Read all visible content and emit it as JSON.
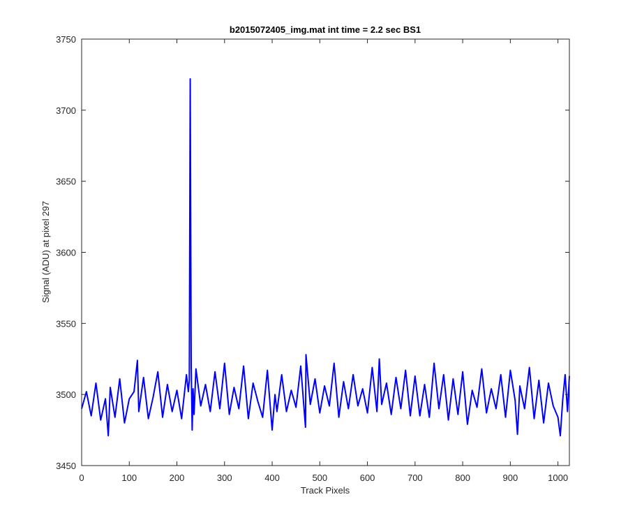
{
  "figure": {
    "background": "#ffffff"
  },
  "chart_data": {
    "type": "line",
    "title": "b2015072405_img.mat int time = 2.2 sec   BS1",
    "xlabel": "Track Pixels",
    "ylabel": "Signal (ADU) at pixel 297",
    "xlim": [
      0,
      1024
    ],
    "ylim": [
      3450,
      3750
    ],
    "xticks": [
      0,
      100,
      200,
      300,
      400,
      500,
      600,
      700,
      800,
      900,
      1000
    ],
    "yticks": [
      3450,
      3500,
      3550,
      3600,
      3650,
      3700,
      3750
    ],
    "grid": false,
    "legend": false,
    "series_color": "#0000ff",
    "series": [
      {
        "points_x": [
          0,
          10,
          20,
          30,
          40,
          50,
          56,
          60,
          70,
          80,
          90,
          100,
          110,
          117,
          120,
          130,
          140,
          150,
          160,
          170,
          180,
          190,
          200,
          210,
          220,
          224,
          226,
          228,
          230,
          232,
          234,
          236,
          240,
          250,
          260,
          270,
          280,
          290,
          300,
          310,
          320,
          330,
          340,
          350,
          360,
          370,
          380,
          390,
          400,
          406,
          410,
          420,
          430,
          440,
          450,
          460,
          470,
          471,
          480,
          490,
          500,
          510,
          520,
          530,
          540,
          550,
          560,
          570,
          580,
          590,
          600,
          610,
          620,
          625,
          630,
          640,
          650,
          660,
          670,
          680,
          690,
          700,
          710,
          720,
          730,
          740,
          750,
          760,
          770,
          780,
          790,
          800,
          810,
          820,
          830,
          840,
          850,
          860,
          870,
          880,
          890,
          900,
          910,
          915,
          920,
          930,
          940,
          950,
          960,
          970,
          980,
          990,
          1000,
          1005,
          1010,
          1015,
          1020,
          1024
        ],
        "values": [
          3490,
          3502,
          3485,
          3508,
          3482,
          3497,
          3471,
          3505,
          3484,
          3511,
          3480,
          3497,
          3502,
          3524,
          3488,
          3512,
          3483,
          3498,
          3516,
          3484,
          3507,
          3488,
          3503,
          3483,
          3514,
          3502,
          3510,
          3722,
          3520,
          3475,
          3504,
          3486,
          3518,
          3492,
          3507,
          3488,
          3516,
          3490,
          3522,
          3486,
          3505,
          3490,
          3520,
          3483,
          3508,
          3495,
          3484,
          3517,
          3475,
          3500,
          3488,
          3514,
          3488,
          3503,
          3491,
          3520,
          3477,
          3528,
          3493,
          3511,
          3487,
          3506,
          3492,
          3522,
          3484,
          3509,
          3490,
          3514,
          3492,
          3504,
          3487,
          3519,
          3488,
          3525,
          3493,
          3508,
          3486,
          3512,
          3490,
          3517,
          3485,
          3513,
          3485,
          3507,
          3484,
          3522,
          3490,
          3514,
          3482,
          3511,
          3486,
          3516,
          3479,
          3503,
          3491,
          3518,
          3487,
          3504,
          3490,
          3514,
          3484,
          3517,
          3496,
          3472,
          3506,
          3490,
          3519,
          3483,
          3510,
          3480,
          3508,
          3492,
          3484,
          3471,
          3496,
          3514,
          3488,
          3513
        ]
      }
    ]
  }
}
